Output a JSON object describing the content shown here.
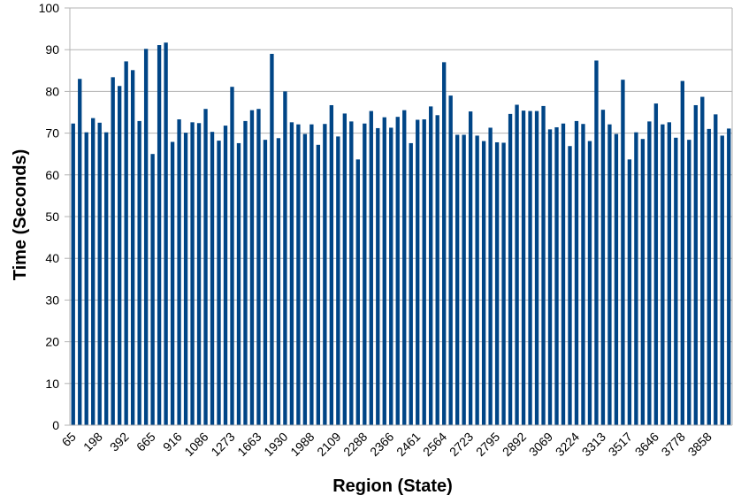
{
  "chart_data": {
    "type": "bar",
    "title": "",
    "xlabel": "Region (State)",
    "ylabel": "Time (Seconds)",
    "ylim": [
      0,
      100
    ],
    "y_ticks": [
      0,
      10,
      20,
      30,
      40,
      50,
      60,
      70,
      80,
      90,
      100
    ],
    "grid": true,
    "legend": "none",
    "bar_color": "#004586",
    "grid_color": "#b3b3b3",
    "x_tick_labels": [
      "65",
      "198",
      "392",
      "665",
      "916",
      "1086",
      "1273",
      "1663",
      "1930",
      "1988",
      "2109",
      "2288",
      "2366",
      "2461",
      "2564",
      "2723",
      "2795",
      "2892",
      "3069",
      "3224",
      "3313",
      "3517",
      "3646",
      "3778",
      "3858"
    ],
    "values": [
      72.3,
      83.0,
      70.2,
      73.6,
      72.5,
      70.2,
      83.4,
      81.3,
      87.2,
      85.1,
      72.9,
      90.2,
      65.0,
      91.1,
      91.7,
      67.9,
      73.3,
      70.1,
      72.6,
      72.4,
      75.8,
      70.3,
      68.2,
      71.8,
      81.1,
      67.6,
      72.9,
      75.5,
      75.8,
      68.4,
      89.0,
      68.8,
      80.0,
      72.6,
      72.1,
      69.8,
      72.1,
      67.2,
      72.2,
      76.7,
      69.2,
      74.7,
      72.8,
      63.7,
      72.3,
      75.3,
      71.2,
      73.8,
      71.3,
      73.9,
      75.5,
      67.6,
      73.2,
      73.3,
      76.4,
      74.3,
      87.0,
      79.0,
      69.6,
      69.6,
      75.2,
      69.4,
      68.1,
      71.3,
      67.8,
      67.7,
      74.6,
      76.8,
      75.4,
      75.3,
      75.3,
      76.5,
      70.9,
      71.4,
      72.3,
      66.9,
      72.9,
      72.2,
      68.1,
      87.4,
      75.6,
      72.1,
      69.8,
      82.8,
      63.7,
      70.2,
      68.6,
      72.8,
      77.1,
      72.1,
      72.6,
      68.9,
      82.5,
      68.4,
      76.7,
      78.7,
      71.0,
      74.5,
      69.4,
      71.1
    ]
  }
}
